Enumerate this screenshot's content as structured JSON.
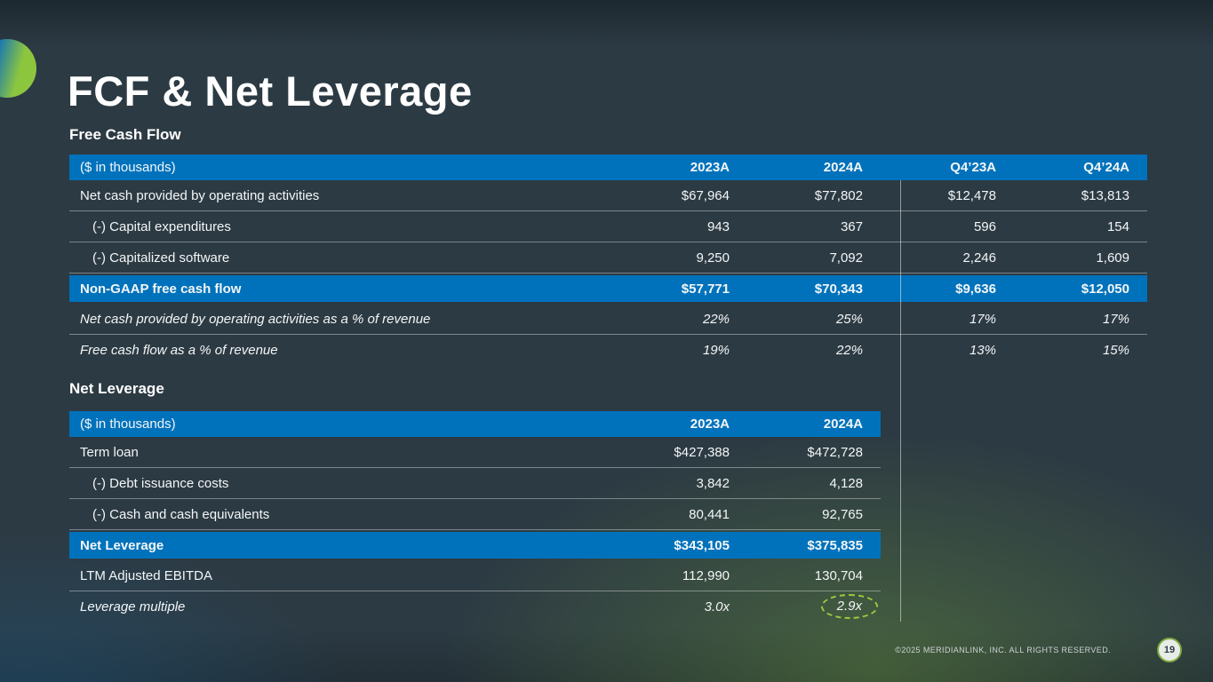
{
  "slide": {
    "title": "FCF & Net Leverage",
    "footer": "©2025 MERIDIANLINK, INC. ALL RIGHTS RESERVED.",
    "page_number": "19",
    "colors": {
      "background": "#2c3a43",
      "accent_blue": "#0072bc",
      "accent_green": "#8cc63f",
      "text": "#ffffff"
    }
  },
  "fcf": {
    "heading": "Free Cash Flow",
    "table": {
      "unit_label": "($ in thousands)",
      "columns": [
        "2023A",
        "2024A",
        "Q4’23A",
        "Q4’24A"
      ],
      "rows": [
        {
          "label": "Net cash provided by operating activities",
          "values": [
            "$67,964",
            "$77,802",
            "$12,478",
            "$13,813"
          ],
          "style": "normal"
        },
        {
          "label": "(-) Capital expenditures",
          "values": [
            "943",
            "367",
            "596",
            "154"
          ],
          "style": "indent"
        },
        {
          "label": "(-) Capitalized software",
          "values": [
            "9,250",
            "7,092",
            "2,246",
            "1,609"
          ],
          "style": "indent"
        },
        {
          "label": "Non-GAAP free cash flow",
          "values": [
            "$57,771",
            "$70,343",
            "$9,636",
            "$12,050"
          ],
          "style": "highlight"
        },
        {
          "label": "Net cash provided by operating activities as a % of revenue",
          "values": [
            "22%",
            "25%",
            "17%",
            "17%"
          ],
          "style": "italic"
        },
        {
          "label": "Free cash flow as a % of revenue",
          "values": [
            "19%",
            "22%",
            "13%",
            "15%"
          ],
          "style": "italic"
        }
      ]
    }
  },
  "leverage": {
    "heading": "Net Leverage",
    "table": {
      "unit_label": "($ in thousands)",
      "columns": [
        "2023A",
        "2024A"
      ],
      "rows": [
        {
          "label": "Term loan",
          "values": [
            "$427,388",
            "$472,728"
          ],
          "style": "normal"
        },
        {
          "label": "(-) Debt issuance costs",
          "values": [
            "3,842",
            "4,128"
          ],
          "style": "indent"
        },
        {
          "label": "(-) Cash and cash equivalents",
          "values": [
            "80,441",
            "92,765"
          ],
          "style": "indent"
        },
        {
          "label": "Net Leverage",
          "values": [
            "$343,105",
            "$375,835"
          ],
          "style": "highlight"
        },
        {
          "label": "LTM Adjusted EBITDA",
          "values": [
            "112,990",
            "130,704"
          ],
          "style": "normal"
        },
        {
          "label": "Leverage multiple",
          "values": [
            "3.0x",
            "2.9x"
          ],
          "style": "italic",
          "circled_value_index": 1
        }
      ]
    }
  }
}
